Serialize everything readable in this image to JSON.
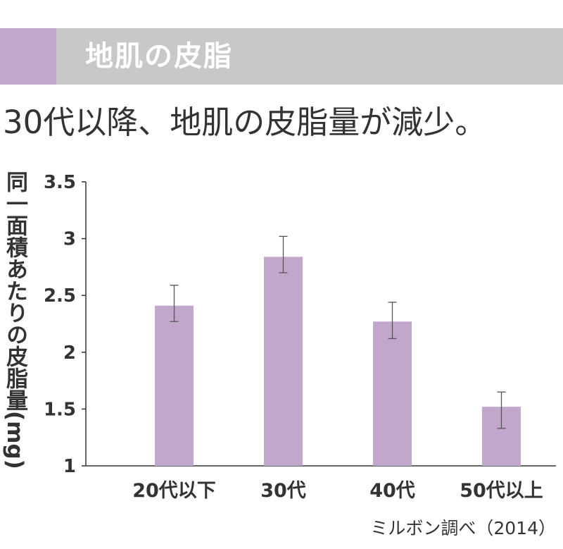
{
  "header": {
    "title": "地肌の皮脂",
    "accent_color": "#c2a7cc",
    "background_color": "#c8c8c8"
  },
  "headline": "30代以降、地肌の皮脂量が減少。",
  "source": "ミルボン調べ（2014）",
  "chart_data": {
    "type": "bar",
    "title": "",
    "xlabel": "",
    "ylabel": "同一面積あたりの皮脂量(mg)",
    "categories": [
      "20代以下",
      "30代",
      "40代",
      "50代以上"
    ],
    "values": [
      2.41,
      2.84,
      2.27,
      1.52
    ],
    "error_low": [
      2.27,
      2.7,
      2.12,
      1.33
    ],
    "error_high": [
      2.59,
      3.02,
      2.44,
      1.65
    ],
    "ylim": [
      1,
      3.5
    ],
    "yticks": [
      "1",
      "1.5",
      "2",
      "2.5",
      "3",
      "3.5"
    ],
    "grid": false,
    "bar_color": "#c2a7cc"
  }
}
